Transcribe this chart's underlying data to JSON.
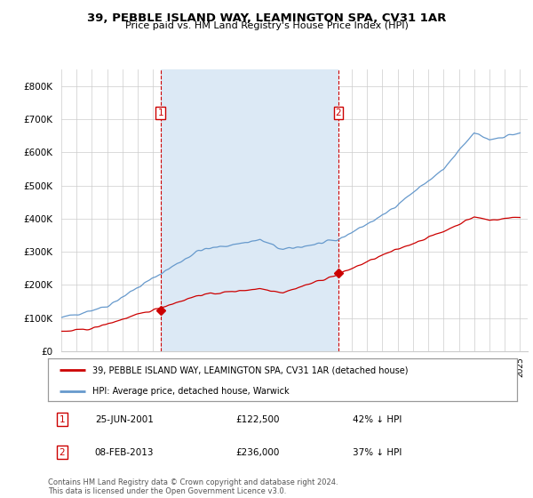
{
  "title": "39, PEBBLE ISLAND WAY, LEAMINGTON SPA, CV31 1AR",
  "subtitle": "Price paid vs. HM Land Registry's House Price Index (HPI)",
  "legend_label_red": "39, PEBBLE ISLAND WAY, LEAMINGTON SPA, CV31 1AR (detached house)",
  "legend_label_blue": "HPI: Average price, detached house, Warwick",
  "annotation1_date": "25-JUN-2001",
  "annotation1_price": "£122,500",
  "annotation1_hpi": "42% ↓ HPI",
  "annotation2_date": "08-FEB-2013",
  "annotation2_price": "£236,000",
  "annotation2_hpi": "37% ↓ HPI",
  "footer": "Contains HM Land Registry data © Crown copyright and database right 2024.\nThis data is licensed under the Open Government Licence v3.0.",
  "red_color": "#cc0000",
  "blue_color": "#6699cc",
  "shade_color": "#dce9f5",
  "vline_color": "#cc0000",
  "ylim": [
    0,
    850000
  ],
  "xlim_left": 1995.0,
  "xlim_right": 2025.5,
  "yticks": [
    0,
    100000,
    200000,
    300000,
    400000,
    500000,
    600000,
    700000,
    800000
  ],
  "ytick_labels": [
    "£0",
    "£100K",
    "£200K",
    "£300K",
    "£400K",
    "£500K",
    "£600K",
    "£700K",
    "£800K"
  ],
  "vline1_x": 2001.5,
  "vline2_x": 2013.12,
  "point1_x": 2001.5,
  "point1_y": 122500,
  "point2_x": 2013.12,
  "point2_y": 236000
}
